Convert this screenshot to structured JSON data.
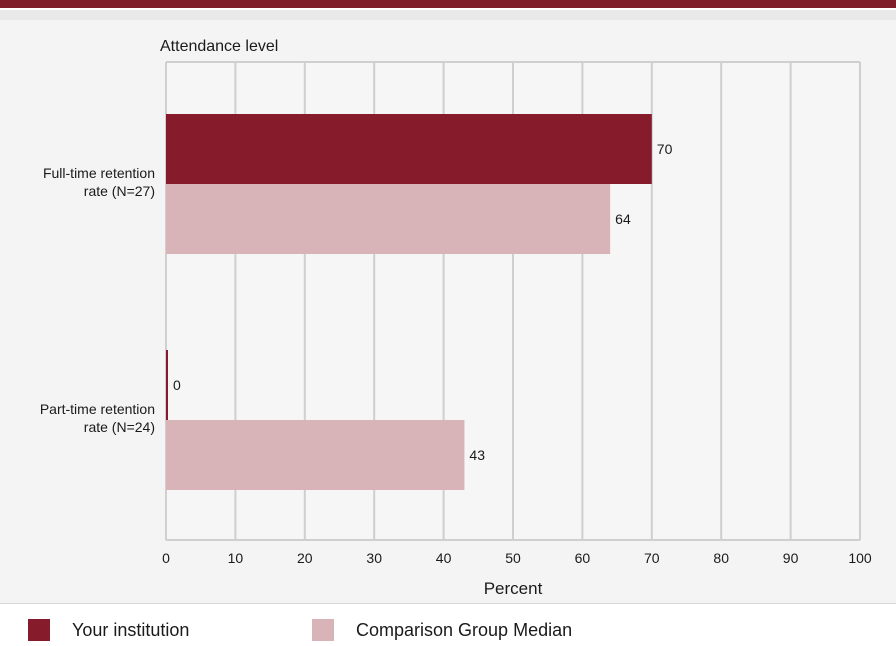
{
  "colors": {
    "top_bar": "#7f1d2b",
    "your_institution": "#861b2c",
    "comparison": "#d8b3b8",
    "grid": "#cfcfcf",
    "panel": "#f4f4f4"
  },
  "chart_data": {
    "type": "bar",
    "orientation": "horizontal",
    "y_axis_title": "Attendance level",
    "xlabel": "Percent",
    "xlim": [
      0,
      100
    ],
    "xticks": [
      "0",
      "10",
      "20",
      "30",
      "40",
      "50",
      "60",
      "70",
      "80",
      "90",
      "100"
    ],
    "xtick_values": [
      0,
      10,
      20,
      30,
      40,
      50,
      60,
      70,
      80,
      90,
      100
    ],
    "grid": true,
    "legend_placement": "bottom",
    "categories": [
      {
        "line1": "Full-time retention",
        "line2": "rate (N=27)"
      },
      {
        "line1": "Part-time retention",
        "line2": "rate (N=24)"
      }
    ],
    "series": [
      {
        "name": "Your institution",
        "values": [
          70,
          0
        ],
        "labels": [
          "70",
          "0"
        ],
        "color": "#861b2c"
      },
      {
        "name": "Comparison Group Median",
        "values": [
          64,
          43
        ],
        "labels": [
          "64",
          "43"
        ],
        "color": "#d8b3b8"
      }
    ]
  }
}
